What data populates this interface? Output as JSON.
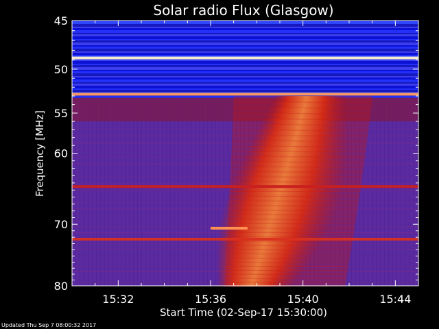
{
  "chart_data": {
    "type": "heatmap",
    "title": "Solar radio Flux (Glasgow)",
    "xlabel": "Start Time (02-Sep-17 15:30:00)",
    "ylabel": "Frequency [MHz]",
    "x_ticks": [
      "15:32",
      "15:36",
      "15:40",
      "15:44"
    ],
    "x_tick_minutes": [
      2,
      6,
      10,
      14
    ],
    "xlim_minutes": [
      0,
      15
    ],
    "y_ticks": [
      45,
      50,
      55,
      60,
      70,
      80
    ],
    "ylim_mhz": [
      45,
      80
    ],
    "y_scale": "log-like",
    "grid": false,
    "colormap": [
      "#1a00a8",
      "#3a0fb0",
      "#6a1690",
      "#b01818",
      "#e83a10",
      "#ff7a20",
      "#ffc060"
    ],
    "background_color": "#5a2aa0",
    "interference_bands_mhz": [
      {
        "f": 45.2,
        "color": "#3048ff"
      },
      {
        "f": 48.8,
        "color": "#fff4d0"
      },
      {
        "f": 52.8,
        "color": "#ffa060"
      },
      {
        "f": 64.5,
        "color": "#c82020"
      },
      {
        "f": 72.3,
        "color": "#d83020"
      }
    ],
    "burst": {
      "start_minute": 6.6,
      "end_minute": 13.0,
      "low_freq_mhz": 53,
      "high_freq_mhz": 80,
      "peak_color": "#ffb050"
    }
  },
  "footer": {
    "updated": "Updated Thu Sep  7 08:00:32 2017"
  }
}
